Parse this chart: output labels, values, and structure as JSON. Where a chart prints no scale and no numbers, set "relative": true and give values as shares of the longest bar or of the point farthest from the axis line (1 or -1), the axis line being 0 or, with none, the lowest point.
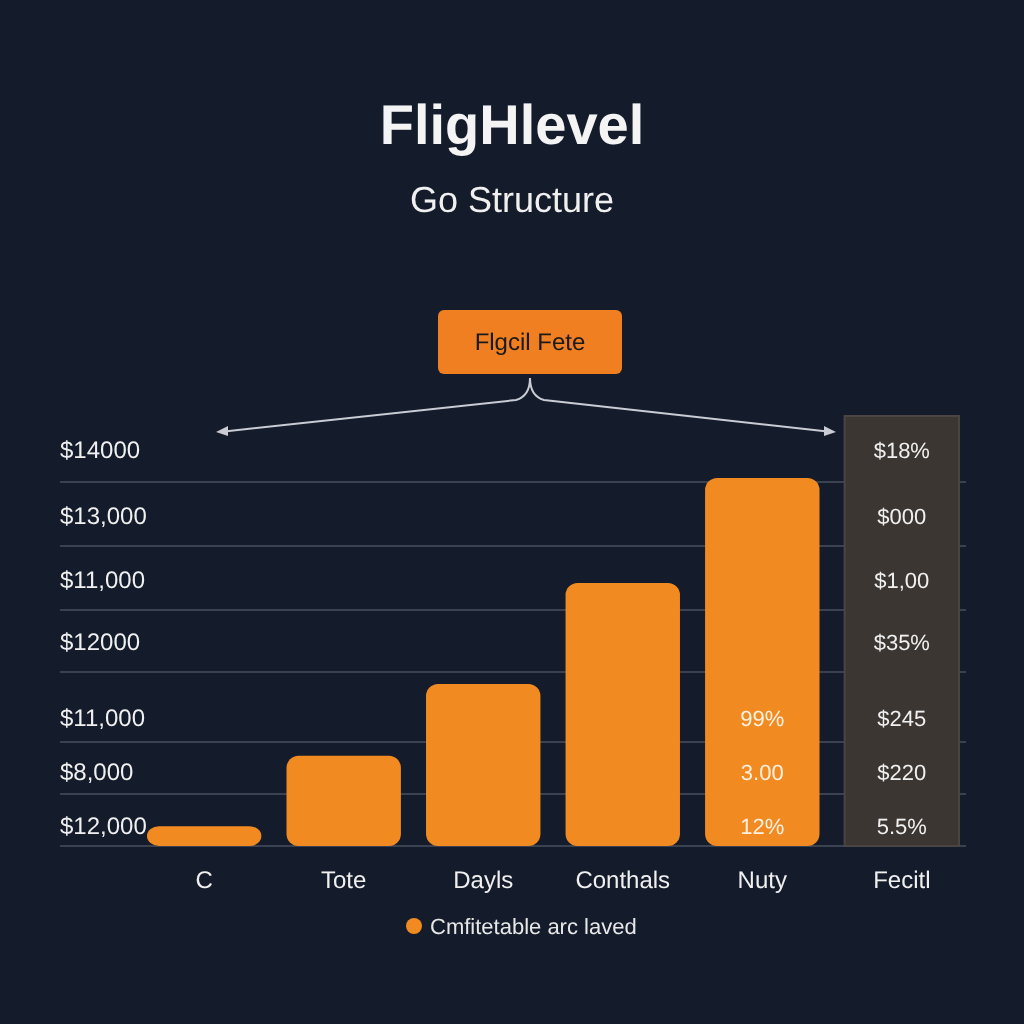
{
  "chart_data": {
    "type": "bar",
    "title": "FligHlevel",
    "subtitle": "Go Structure",
    "categories": [
      "C",
      "Tote",
      "Dayls",
      "Conthals",
      "Nuty",
      "Fecitl"
    ],
    "series": [
      {
        "name": "Cmfitetable arc laved",
        "color": "#f28a22",
        "values": [
          0.054,
          0.245,
          0.44,
          0.715,
          1,
          null
        ]
      }
    ],
    "relative": true,
    "grid": "y",
    "legend": "bottom",
    "annotations": [
      "Flgcil Fete",
      "$14000",
      "$13,000",
      "$11,000",
      "$12000",
      "$11,000",
      "$8,000",
      "$12,000",
      "99%",
      "3.00",
      "12%",
      "$18%",
      "$000",
      "$1,00",
      "$35%",
      "$245",
      "$220",
      "5.5%"
    ]
  }
}
